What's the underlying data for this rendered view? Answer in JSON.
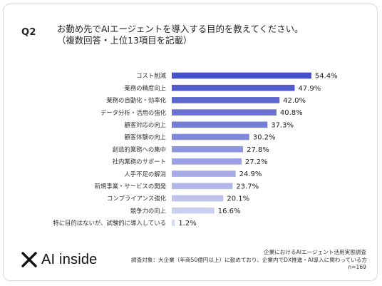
{
  "question": {
    "label": "Q2",
    "title_line1": "お勤め先でAIエージェントを導入する目的を教えてください。",
    "title_line2": "（複数回答・上位13項目を記載）"
  },
  "chart_data": {
    "type": "bar",
    "orientation": "horizontal",
    "categories": [
      "コスト削減",
      "業務の精度向上",
      "業務の自動化・効率化",
      "データ分析・活用の強化",
      "顧客対応の向上",
      "顧客体験の向上",
      "創造的業務への集中",
      "社内業務のサポート",
      "人手不足の解消",
      "新規事業・サービスの開発",
      "コンプライアンス強化",
      "競争力の向上",
      "特に目的はないが、試験的に導入している"
    ],
    "values": [
      54.4,
      47.9,
      42.0,
      40.8,
      37.3,
      30.2,
      27.8,
      27.2,
      24.9,
      23.7,
      20.1,
      16.6,
      1.2
    ],
    "value_labels": [
      "54.4%",
      "47.9%",
      "42.0%",
      "40.8%",
      "37.3%",
      "30.2%",
      "27.8%",
      "27.2%",
      "24.9%",
      "23.7%",
      "20.1%",
      "16.6%",
      "1.2%"
    ],
    "xlim": [
      0,
      100
    ],
    "grid": false,
    "colors": {
      "start": "#4550c9",
      "end": "#d6d9f3"
    }
  },
  "brand": {
    "name": "AI inside"
  },
  "notes": {
    "source": "企業におけるAIエージェント活用実態調査",
    "target": "調査対象：大企業（年商50億円以上）に勤めており、企業内でDX推進・AI導入に関わっている方",
    "n": "n=169"
  }
}
